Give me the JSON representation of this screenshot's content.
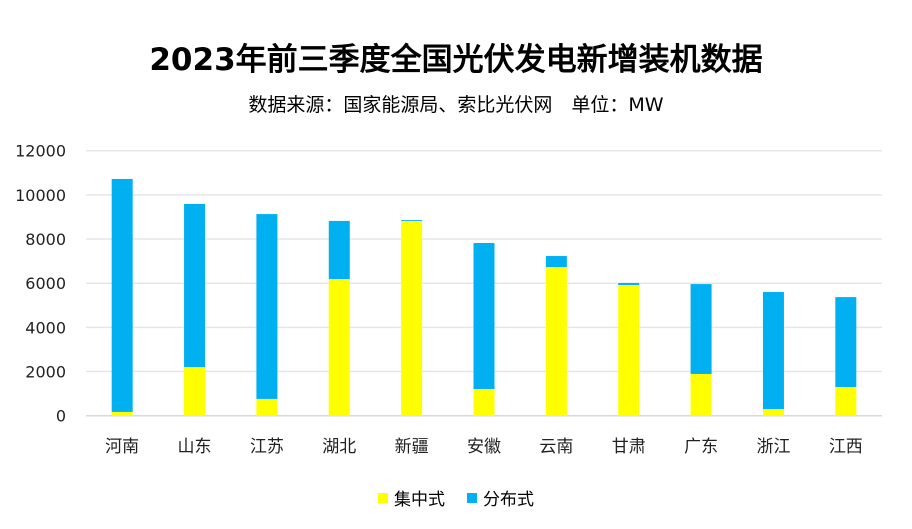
{
  "chart_data": {
    "type": "bar",
    "stacked": true,
    "title": "2023年前三季度全国光伏发电新增装机数据",
    "subtitle": "数据来源：国家能源局、索比光伏网　单位：MW",
    "xlabel": "",
    "ylabel": "",
    "ylim": [
      0,
      12000
    ],
    "yticks": [
      0,
      2000,
      4000,
      6000,
      8000,
      10000,
      12000
    ],
    "grid": true,
    "legend_position": "bottom",
    "categories": [
      "河南",
      "山东",
      "江苏",
      "湖北",
      "新疆",
      "安徽",
      "云南",
      "甘肃",
      "广东",
      "浙江",
      "江西"
    ],
    "series": [
      {
        "name": "集中式",
        "color": "#FFFF00",
        "values": [
          170,
          2200,
          760,
          6190,
          8820,
          1210,
          6730,
          5920,
          1890,
          300,
          1300
        ]
      },
      {
        "name": "分布式",
        "color": "#00B0F0",
        "values": [
          10550,
          7390,
          8370,
          2630,
          40,
          6610,
          500,
          90,
          4070,
          5300,
          4070
        ]
      }
    ]
  }
}
